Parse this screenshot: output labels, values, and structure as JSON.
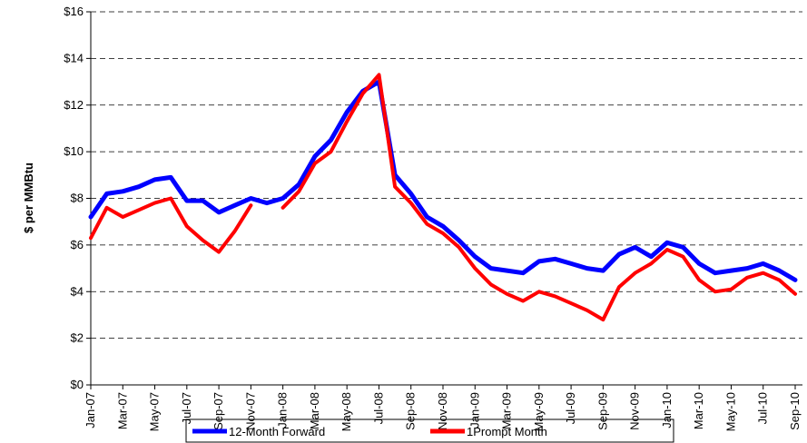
{
  "chart_data": {
    "type": "line",
    "ylabel": "$ per MMBtu",
    "categories": [
      "Jan-07",
      null,
      "Mar-07",
      null,
      "May-07",
      null,
      "Jul-07",
      null,
      "Sep-07",
      null,
      "Nov-07",
      null,
      "Jan-08",
      null,
      "Mar-08",
      null,
      "May-08",
      null,
      "Jul-08",
      null,
      "Sep-08",
      null,
      "Nov-08",
      null,
      "Jan-09",
      null,
      "Mar-09",
      null,
      "May-09",
      null,
      "Jul-09",
      null,
      "Sep-09",
      null,
      "Nov-09",
      null,
      "Jan-10",
      null,
      "Mar-10",
      null,
      "May-10",
      null,
      "Jul-10",
      null,
      "Sep-10"
    ],
    "series": [
      {
        "name": "12-Month Forward",
        "color": "#0000ff",
        "values": [
          7.2,
          8.2,
          8.3,
          8.5,
          8.8,
          8.9,
          7.9,
          7.9,
          7.4,
          7.7,
          8.0,
          7.8,
          8.0,
          8.6,
          9.8,
          10.5,
          11.7,
          12.6,
          13.0,
          9.0,
          8.2,
          7.2,
          6.8,
          6.2,
          5.5,
          5.0,
          4.9,
          4.8,
          5.3,
          5.4,
          5.2,
          5.0,
          4.9,
          5.6,
          5.9,
          5.5,
          6.1,
          5.9,
          5.2,
          4.8,
          4.9,
          5.0,
          5.2,
          4.9,
          4.5
        ]
      },
      {
        "name": "1Prompt Month",
        "color": "#ff0000",
        "values": [
          6.3,
          7.6,
          7.2,
          7.5,
          7.8,
          8.0,
          6.8,
          6.2,
          5.7,
          6.6,
          7.7,
          null,
          7.6,
          8.3,
          9.5,
          10.0,
          11.3,
          12.5,
          13.3,
          8.5,
          7.8,
          6.9,
          6.5,
          5.9,
          5.0,
          4.3,
          3.9,
          3.6,
          4.0,
          3.8,
          3.5,
          3.2,
          2.8,
          4.2,
          4.8,
          5.2,
          5.8,
          5.5,
          4.5,
          4.0,
          4.1,
          4.6,
          4.8,
          4.5,
          3.9
        ]
      }
    ],
    "ylim": [
      0,
      16
    ],
    "yticks": [
      {
        "value": 0,
        "label": "$0"
      },
      {
        "value": 2,
        "label": "$2"
      },
      {
        "value": 4,
        "label": "$4"
      },
      {
        "value": 6,
        "label": "$6"
      },
      {
        "value": 8,
        "label": "$8"
      },
      {
        "value": 10,
        "label": "$10"
      },
      {
        "value": 12,
        "label": "$12"
      },
      {
        "value": 14,
        "label": "$14"
      },
      {
        "value": 16,
        "label": "$16"
      }
    ],
    "grid": true,
    "legend": "bottom"
  }
}
